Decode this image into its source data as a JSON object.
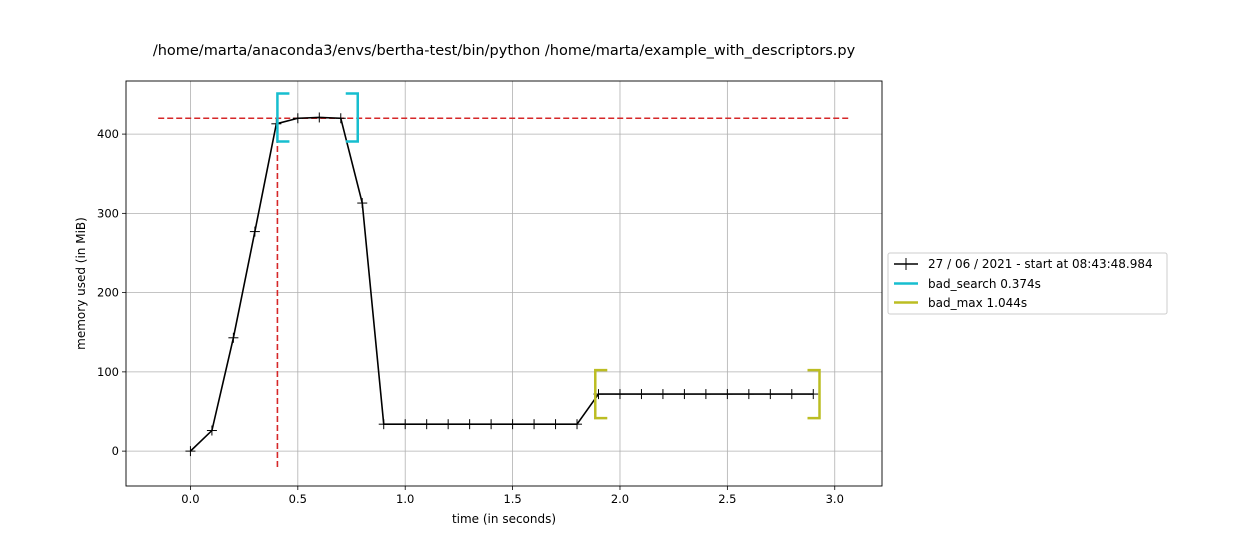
{
  "chart_data": {
    "type": "line",
    "title": "/home/marta/anaconda3/envs/bertha-test/bin/python /home/marta/example_with_descriptors.py",
    "xlabel": "time (in seconds)",
    "ylabel": "memory used (in MiB)",
    "xlim": [
      -0.3,
      3.22
    ],
    "ylim": [
      -44,
      467
    ],
    "xticks": [
      0.0,
      0.5,
      1.0,
      1.5,
      2.0,
      2.5,
      3.0
    ],
    "xtick_labels": [
      "0.0",
      "0.5",
      "1.0",
      "1.5",
      "2.0",
      "2.5",
      "3.0"
    ],
    "yticks": [
      0,
      100,
      200,
      300,
      400
    ],
    "ytick_labels": [
      "0",
      "100",
      "200",
      "300",
      "400"
    ],
    "grid": true,
    "legend_position": "center-right, outside plot",
    "series": [
      {
        "name": "27 / 06 / 2021 - start at 08:43:48.984",
        "color": "#000000",
        "marker": "+",
        "x": [
          0.0,
          0.1,
          0.2,
          0.3,
          0.4,
          0.5,
          0.6,
          0.7,
          0.8,
          0.9,
          1.0,
          1.1,
          1.2,
          1.3,
          1.4,
          1.5,
          1.6,
          1.7,
          1.8,
          1.9,
          2.0,
          2.1,
          2.2,
          2.3,
          2.4,
          2.5,
          2.6,
          2.7,
          2.8,
          2.9
        ],
        "y": [
          0,
          26,
          143,
          277,
          413,
          420,
          421,
          420,
          313,
          34,
          34,
          34,
          34,
          34,
          34,
          34,
          34,
          34,
          34,
          72,
          72,
          72,
          72,
          72,
          72,
          72,
          72,
          72,
          72,
          72
        ]
      }
    ],
    "function_brackets": [
      {
        "name": "bad_search 0.374s",
        "color": "#17becf",
        "start": 0.405,
        "end": 0.779,
        "level": 421
      },
      {
        "name": "bad_max 1.044s",
        "color": "#bcbd22",
        "start": 1.885,
        "end": 2.929,
        "level": 72
      }
    ],
    "max_lines": {
      "color": "#d62728",
      "y": 420,
      "x": 0.405
    }
  }
}
